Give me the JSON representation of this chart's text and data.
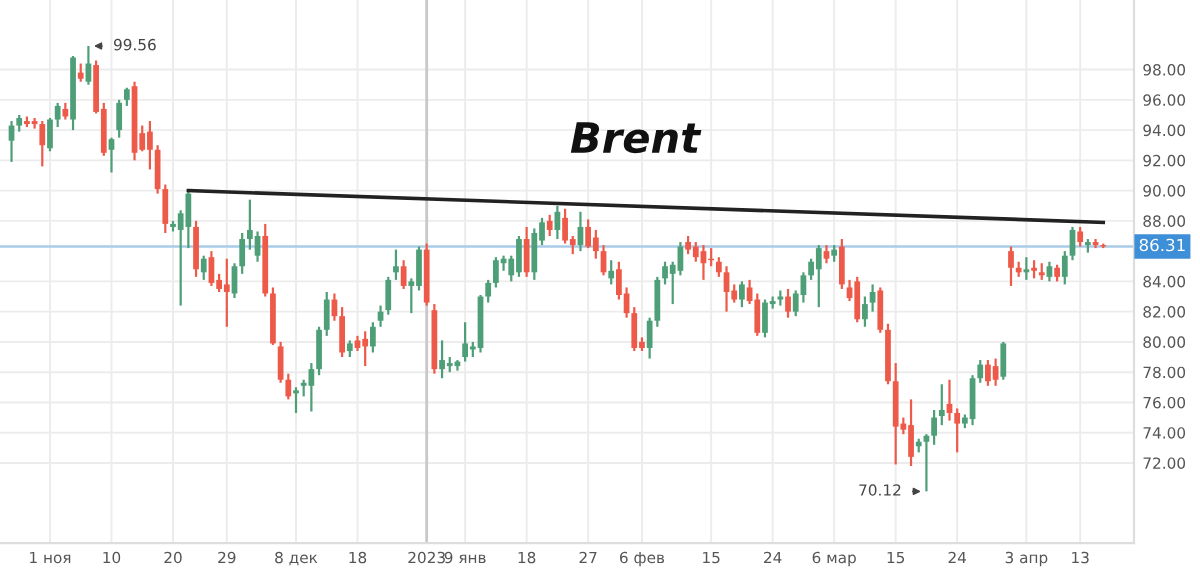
{
  "chart_data": {
    "type": "candlestick",
    "title": "Brent",
    "ylim": [
      66.7,
      102.6
    ],
    "categories": [
      null,
      null,
      null,
      null,
      null,
      "1 ноя",
      null,
      null,
      null,
      null,
      null,
      null,
      null,
      "10",
      null,
      null,
      null,
      null,
      null,
      null,
      null,
      "20",
      null,
      null,
      null,
      null,
      null,
      null,
      "29",
      null,
      null,
      null,
      null,
      null,
      null,
      null,
      null,
      "8 дек",
      null,
      null,
      null,
      null,
      null,
      null,
      null,
      "18",
      null,
      null,
      null,
      null,
      null,
      null,
      null,
      null,
      "2023",
      null,
      null,
      null,
      null,
      "9 янв",
      null,
      null,
      null,
      null,
      null,
      null,
      null,
      "18",
      null,
      null,
      null,
      null,
      null,
      null,
      null,
      "27",
      null,
      null,
      null,
      null,
      null,
      null,
      "6 фев",
      null,
      null,
      null,
      null,
      null,
      null,
      null,
      null,
      "15",
      null,
      null,
      null,
      null,
      null,
      null,
      null,
      "24",
      null,
      null,
      null,
      null,
      null,
      null,
      null,
      "6 мар",
      null,
      null,
      null,
      null,
      null,
      null,
      null,
      "15",
      null,
      null,
      null,
      null,
      null,
      null,
      null,
      "24",
      null,
      null,
      null,
      null,
      null,
      null,
      null,
      null,
      "3 апр",
      null,
      null,
      null,
      null,
      null,
      null,
      "13",
      null,
      null,
      null
    ],
    "yticks": [
      {
        "value": 72,
        "label": "72.00"
      },
      {
        "value": 74,
        "label": "74.00"
      },
      {
        "value": 76,
        "label": "76.00"
      },
      {
        "value": 78,
        "label": "78.00"
      },
      {
        "value": 80,
        "label": "80.00"
      },
      {
        "value": 82,
        "label": "82.00"
      },
      {
        "value": 84,
        "label": "84.00"
      },
      {
        "value": 88,
        "label": "88.00"
      },
      {
        "value": 90,
        "label": "90.00"
      },
      {
        "value": 92,
        "label": "92.00"
      },
      {
        "value": 94,
        "label": "94.00"
      },
      {
        "value": 96,
        "label": "96.00"
      },
      {
        "value": 98,
        "label": "98.00"
      }
    ],
    "grid": true,
    "ref_lines": [
      {
        "axis": "y",
        "value": 86.31,
        "label": "86.31",
        "color": "#a9cbe8"
      },
      {
        "axis": "x",
        "value": "2023",
        "label": null,
        "color": "#c8c8c8"
      }
    ],
    "annotations": [
      "99.56",
      "70.12"
    ],
    "series": [
      {
        "colors": [
          "#4e9f78",
          "#4e9f78",
          "#ee5a4a",
          "#ee5a4a",
          "#ee5a4a",
          "#4e9f78",
          "#4e9f78",
          "#ee5a4a",
          "#4e9f78",
          "#ee5a4a",
          "#4e9f78",
          "#ee5a4a",
          "#ee5a4a",
          "#4e9f78",
          "#4e9f78",
          "#4e9f78",
          "#ee5a4a",
          "#ee5a4a",
          "#ee5a4a",
          "#ee5a4a",
          "#ee5a4a",
          "#4e9f78",
          "#4e9f78",
          "#4e9f78",
          "#ee5a4a",
          "#4e9f78",
          "#ee5a4a",
          "#ee5a4a",
          "#ee5a4a",
          "#4e9f78",
          "#4e9f78",
          "#4e9f78",
          "#4e9f78",
          "#ee5a4a",
          "#ee5a4a",
          "#ee5a4a",
          "#ee5a4a",
          "#4e9f78",
          "#4e9f78",
          "#4e9f78",
          "#4e9f78",
          "#4e9f78",
          "#ee5a4a",
          "#ee5a4a",
          "#4e9f78",
          "#ee5a4a",
          "#ee5a4a",
          "#4e9f78",
          "#4e9f78",
          "#4e9f78",
          "#4e9f78",
          "#ee5a4a",
          "#4e9f78",
          "#4e9f78",
          "#ee5a4a",
          "#ee5a4a",
          "#4e9f78",
          "#4e9f78",
          "#4e9f78",
          "#4e9f78",
          "#4e9f78",
          "#4e9f78",
          "#4e9f78",
          "#4e9f78",
          "#4e9f78",
          "#4e9f78",
          "#4e9f78",
          "#ee5a4a",
          "#4e9f78",
          "#4e9f78",
          "#ee5a4a",
          "#4e9f78",
          "#ee5a4a",
          "#ee5a4a",
          "#4e9f78",
          "#ee5a4a",
          "#ee5a4a",
          "#ee5a4a",
          "#4e9f78",
          "#ee5a4a",
          "#ee5a4a",
          "#ee5a4a",
          "#ee5a4a",
          "#4e9f78",
          "#4e9f78",
          "#4e9f78",
          "#4e9f78",
          "#4e9f78",
          "#ee5a4a",
          "#ee5a4a",
          "#ee5a4a",
          "#ee5a4a",
          "#ee5a4a",
          "#ee5a4a",
          "#ee5a4a",
          "#4e9f78",
          "#ee5a4a",
          "#ee5a4a",
          "#4e9f78",
          "#4e9f78",
          "#4e9f78",
          "#ee5a4a",
          "#4e9f78",
          "#4e9f78",
          "#4e9f78",
          "#4e9f78",
          "#ee5a4a",
          "#4e9f78",
          "#ee5a4a",
          "#ee5a4a",
          "#ee5a4a",
          "#4e9f78",
          "#4e9f78",
          "#ee5a4a",
          "#ee5a4a",
          "#ee5a4a",
          "#ee5a4a",
          "#ee5a4a",
          "#4e9f78",
          "#4e9f78",
          "#4e9f78",
          "#4e9f78",
          "#ee5a4a",
          "#ee5a4a",
          "#4e9f78",
          "#4e9f78",
          "#4e9f78",
          "#ee5a4a",
          "#ee5a4a",
          "#4e9f78",
          "#ee5a4a",
          "#ee5a4a",
          "#4e9f78",
          "#ee5a4a",
          "#ee5a4a",
          "#4e9f78",
          "#ee5a4a",
          "#4e9f78",
          "#4e9f78",
          "#ee5a4a",
          "#4e9f78",
          "#ee5a4a",
          "#ee5a4a"
        ],
        "ohlc": [
          [
            93.3,
            94.6,
            91.9,
            94.3
          ],
          [
            94.3,
            95.0,
            93.9,
            94.8
          ],
          [
            94.6,
            94.9,
            94.2,
            94.4
          ],
          [
            94.6,
            94.8,
            94.1,
            94.4
          ],
          [
            94.4,
            94.6,
            91.6,
            93.0
          ],
          [
            92.8,
            94.8,
            92.6,
            94.7
          ],
          [
            94.7,
            95.8,
            94.2,
            95.6
          ],
          [
            95.4,
            95.8,
            94.7,
            94.9
          ],
          [
            94.7,
            98.9,
            94.0,
            98.8
          ],
          [
            97.8,
            98.4,
            97.2,
            97.4
          ],
          [
            97.2,
            99.56,
            97.0,
            98.4
          ],
          [
            98.3,
            98.6,
            95.1,
            95.2
          ],
          [
            95.4,
            95.8,
            92.3,
            92.5
          ],
          [
            92.7,
            93.5,
            91.2,
            93.4
          ],
          [
            94.0,
            96.0,
            93.5,
            95.8
          ],
          [
            96.0,
            96.8,
            95.6,
            96.7
          ],
          [
            96.9,
            97.2,
            92.0,
            92.5
          ],
          [
            93.8,
            94.3,
            92.6,
            92.7
          ],
          [
            93.9,
            94.6,
            91.4,
            92.7
          ],
          [
            92.7,
            93.0,
            89.8,
            90.1
          ],
          [
            90.1,
            90.4,
            87.2,
            87.8
          ],
          [
            87.6,
            88.0,
            87.3,
            87.8
          ],
          [
            87.4,
            88.7,
            82.4,
            88.5
          ],
          [
            87.6,
            90.0,
            86.2,
            89.8
          ],
          [
            87.6,
            88.0,
            84.3,
            84.8
          ],
          [
            84.6,
            85.7,
            84.1,
            85.5
          ],
          [
            85.6,
            86.0,
            83.7,
            83.9
          ],
          [
            84.1,
            84.5,
            83.3,
            83.5
          ],
          [
            83.8,
            85.5,
            81.0,
            83.3
          ],
          [
            83.2,
            85.2,
            82.9,
            85.0
          ],
          [
            85.0,
            87.2,
            84.5,
            86.8
          ],
          [
            86.8,
            89.4,
            86.1,
            87.4
          ],
          [
            85.7,
            87.3,
            85.3,
            87.0
          ],
          [
            87.0,
            87.8,
            83.0,
            83.2
          ],
          [
            83.2,
            83.6,
            79.8,
            79.9
          ],
          [
            79.7,
            80.0,
            77.3,
            77.5
          ],
          [
            77.5,
            77.9,
            76.2,
            76.4
          ],
          [
            76.6,
            77.0,
            75.3,
            76.8
          ],
          [
            77.1,
            77.5,
            76.4,
            77.3
          ],
          [
            77.1,
            78.6,
            75.4,
            78.2
          ],
          [
            78.2,
            81.0,
            77.8,
            80.8
          ],
          [
            80.8,
            83.3,
            80.4,
            82.8
          ],
          [
            82.8,
            83.2,
            81.4,
            81.7
          ],
          [
            81.7,
            82.3,
            79.0,
            79.3
          ],
          [
            79.4,
            80.1,
            79.0,
            79.9
          ],
          [
            80.1,
            80.4,
            79.4,
            79.6
          ],
          [
            80.2,
            80.7,
            78.4,
            79.7
          ],
          [
            79.7,
            81.3,
            79.3,
            81.0
          ],
          [
            81.4,
            82.4,
            81.0,
            82.0
          ],
          [
            82.1,
            84.3,
            81.8,
            84.1
          ],
          [
            84.6,
            86.1,
            84.1,
            85.0
          ],
          [
            85.0,
            85.4,
            83.5,
            83.7
          ],
          [
            83.7,
            84.2,
            81.9,
            84.0
          ],
          [
            83.7,
            86.3,
            83.4,
            86.1
          ],
          [
            86.1,
            86.5,
            82.4,
            82.6
          ],
          [
            82.1,
            82.5,
            77.9,
            78.2
          ],
          [
            78.2,
            80.1,
            77.6,
            78.8
          ],
          [
            78.4,
            79.0,
            78.0,
            78.6
          ],
          [
            78.4,
            78.8,
            78.1,
            78.7
          ],
          [
            79.0,
            81.3,
            78.7,
            79.9
          ],
          [
            79.5,
            80.0,
            79.0,
            79.7
          ],
          [
            79.6,
            83.1,
            79.3,
            83.0
          ],
          [
            83.0,
            84.1,
            82.6,
            83.9
          ],
          [
            83.9,
            85.6,
            83.6,
            85.4
          ],
          [
            85.2,
            85.7,
            84.7,
            85.5
          ],
          [
            84.4,
            85.7,
            84.0,
            85.5
          ],
          [
            84.6,
            87.0,
            84.3,
            86.8
          ],
          [
            86.8,
            87.6,
            84.3,
            84.6
          ],
          [
            84.6,
            87.5,
            84.1,
            87.2
          ],
          [
            86.7,
            88.2,
            86.4,
            87.9
          ],
          [
            88.0,
            88.4,
            87.0,
            87.4
          ],
          [
            87.4,
            89.0,
            86.8,
            88.6
          ],
          [
            88.2,
            88.8,
            86.5,
            86.7
          ],
          [
            86.8,
            87.0,
            85.8,
            86.4
          ],
          [
            86.4,
            88.6,
            86.0,
            87.6
          ],
          [
            87.6,
            88.1,
            86.2,
            86.3
          ],
          [
            86.9,
            87.4,
            85.5,
            86.0
          ],
          [
            86.0,
            86.4,
            84.4,
            84.6
          ],
          [
            84.2,
            85.4,
            83.8,
            84.7
          ],
          [
            84.8,
            85.3,
            82.8,
            83.1
          ],
          [
            83.2,
            83.6,
            81.6,
            81.9
          ],
          [
            81.9,
            82.3,
            79.4,
            79.6
          ],
          [
            80.0,
            80.3,
            79.4,
            79.6
          ],
          [
            79.6,
            81.6,
            78.9,
            81.4
          ],
          [
            81.4,
            84.3,
            81.0,
            84.1
          ],
          [
            84.2,
            85.3,
            83.8,
            85.0
          ],
          [
            84.5,
            85.3,
            82.5,
            85.1
          ],
          [
            84.7,
            86.6,
            84.4,
            86.3
          ],
          [
            86.6,
            87.0,
            85.8,
            86.1
          ],
          [
            86.3,
            86.6,
            85.3,
            85.6
          ],
          [
            86.0,
            86.4,
            84.1,
            85.2
          ],
          [
            85.5,
            86.2,
            85.0,
            85.4
          ],
          [
            85.3,
            85.6,
            84.3,
            84.6
          ],
          [
            84.6,
            85.0,
            82.0,
            83.3
          ],
          [
            83.4,
            83.8,
            82.6,
            82.8
          ],
          [
            82.8,
            84.0,
            82.3,
            83.8
          ],
          [
            83.6,
            84.1,
            82.5,
            82.7
          ],
          [
            82.8,
            83.2,
            80.4,
            80.6
          ],
          [
            80.6,
            82.8,
            80.3,
            82.6
          ],
          [
            82.5,
            83.0,
            82.2,
            82.7
          ],
          [
            82.8,
            83.4,
            82.4,
            83.0
          ],
          [
            83.0,
            83.5,
            81.6,
            82.0
          ],
          [
            82.0,
            83.4,
            81.7,
            83.2
          ],
          [
            83.1,
            84.6,
            82.6,
            84.4
          ],
          [
            84.4,
            85.5,
            84.1,
            85.3
          ],
          [
            84.8,
            86.4,
            82.3,
            86.2
          ],
          [
            86.0,
            86.4,
            85.2,
            85.5
          ],
          [
            85.7,
            86.4,
            85.3,
            86.1
          ],
          [
            86.3,
            86.8,
            83.5,
            83.8
          ],
          [
            83.6,
            84.1,
            82.7,
            82.9
          ],
          [
            84.0,
            84.3,
            81.3,
            81.5
          ],
          [
            81.5,
            83.0,
            81.0,
            82.5
          ],
          [
            82.6,
            83.8,
            82.0,
            83.3
          ],
          [
            83.4,
            83.6,
            80.6,
            80.8
          ],
          [
            80.8,
            81.2,
            77.2,
            77.4
          ],
          [
            77.4,
            78.6,
            71.9,
            74.4
          ],
          [
            74.6,
            75.0,
            73.9,
            74.2
          ],
          [
            74.5,
            76.2,
            71.8,
            72.4
          ],
          [
            73.1,
            73.6,
            72.7,
            73.4
          ],
          [
            73.4,
            73.9,
            70.12,
            73.8
          ],
          [
            73.8,
            75.5,
            73.2,
            75.0
          ],
          [
            75.1,
            77.2,
            74.5,
            75.5
          ],
          [
            75.9,
            77.5,
            74.8,
            75.3
          ],
          [
            75.3,
            75.6,
            72.7,
            74.6
          ],
          [
            74.6,
            75.2,
            74.3,
            75.0
          ],
          [
            74.9,
            77.8,
            74.5,
            77.6
          ],
          [
            77.6,
            78.8,
            77.3,
            78.5
          ],
          [
            78.5,
            78.8,
            77.1,
            77.4
          ],
          [
            78.4,
            78.9,
            77.1,
            77.5
          ],
          [
            77.7,
            80.0,
            77.5,
            79.9
          ],
          [
            86.0,
            86.3,
            83.7,
            84.9
          ],
          [
            84.9,
            85.3,
            84.3,
            84.6
          ],
          [
            84.6,
            85.6,
            84.1,
            84.8
          ],
          [
            84.9,
            85.4,
            84.2,
            84.7
          ],
          [
            84.6,
            85.2,
            84.1,
            84.4
          ],
          [
            84.3,
            85.3,
            84.0,
            85.0
          ],
          [
            84.9,
            85.1,
            84.0,
            84.3
          ],
          [
            84.3,
            86.0,
            83.8,
            85.7
          ],
          [
            85.7,
            87.6,
            85.4,
            87.4
          ],
          [
            87.3,
            87.6,
            86.3,
            86.6
          ],
          [
            86.4,
            86.8,
            85.9,
            86.6
          ],
          [
            86.6,
            86.8,
            86.2,
            86.4
          ],
          [
            86.4,
            86.5,
            86.2,
            86.31
          ]
        ]
      },
      {
        "type": "line",
        "color": "#222222",
        "values": [
          null,
          null,
          null,
          null,
          null,
          null,
          null,
          null,
          null,
          null,
          null,
          null,
          null,
          null,
          null,
          null,
          null,
          null,
          null,
          null,
          null,
          null,
          null,
          90.0,
          null,
          null,
          null,
          null,
          null,
          null,
          null,
          null,
          null,
          null,
          null,
          null,
          null,
          null,
          null,
          null,
          null,
          null,
          null,
          null,
          null,
          null,
          null,
          null,
          null,
          null,
          null,
          null,
          null,
          null,
          null,
          null,
          null,
          null,
          null,
          null,
          null,
          null,
          null,
          null,
          null,
          null,
          null,
          null,
          null,
          null,
          null,
          null,
          null,
          null,
          null,
          null,
          null,
          null,
          null,
          null,
          null,
          null,
          null,
          null,
          null,
          null,
          null,
          null,
          null,
          null,
          null,
          null,
          null,
          null,
          null,
          null,
          null,
          null,
          null,
          null,
          null,
          null,
          null,
          null,
          null,
          null,
          null,
          null,
          null,
          null,
          null,
          null,
          null,
          null,
          null,
          null,
          null,
          null,
          null,
          null,
          null,
          null,
          null,
          null,
          null,
          null,
          null,
          null,
          null,
          null,
          null,
          null,
          null,
          null,
          null,
          null,
          null,
          null,
          null,
          null,
          null,
          null,
          87.9
        ]
      }
    ]
  }
}
